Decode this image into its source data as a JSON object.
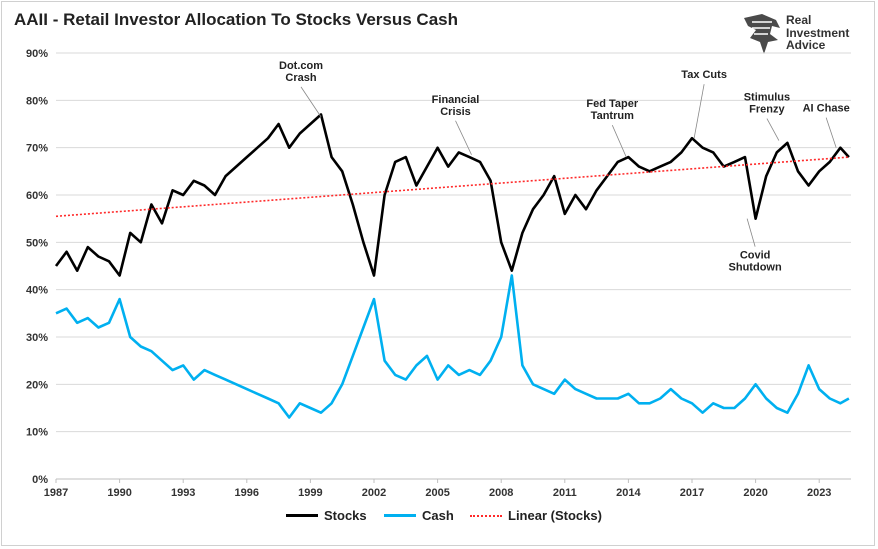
{
  "title": "AAII - Retail Investor Allocation To Stocks Versus Cash",
  "logo": {
    "line1": "Real",
    "line2": "Investment",
    "line3": "Advice"
  },
  "colors": {
    "stocks": "#000000",
    "cash": "#00b0f0",
    "trend": "#ff2a2a",
    "grid": "#d9d9d9"
  },
  "legend": {
    "stocks": "Stocks",
    "cash": "Cash",
    "trend": "Linear (Stocks)"
  },
  "chart_data": {
    "type": "line",
    "title": "AAII - Retail Investor Allocation To Stocks Versus Cash",
    "x_ticks": [
      "1987",
      "1990",
      "1993",
      "1996",
      "1999",
      "2002",
      "2005",
      "2008",
      "2011",
      "2014",
      "2017",
      "2020",
      "2023"
    ],
    "y_ticks": [
      "0%",
      "10%",
      "20%",
      "30%",
      "40%",
      "50%",
      "60%",
      "70%",
      "80%",
      "90%"
    ],
    "xlim": [
      1987.0,
      2024.5
    ],
    "ylim": [
      0,
      90
    ],
    "grid": "horizontal",
    "legend_position": "bottom",
    "series": [
      {
        "name": "Stocks",
        "x": [
          1987.0,
          1987.5,
          1988.0,
          1988.5,
          1989.0,
          1989.5,
          1990.0,
          1990.5,
          1991.0,
          1991.5,
          1992.0,
          1992.5,
          1993.0,
          1993.5,
          1994.0,
          1994.5,
          1995.0,
          1995.5,
          1996.0,
          1996.5,
          1997.0,
          1997.5,
          1998.0,
          1998.5,
          1999.0,
          1999.5,
          2000.0,
          2000.5,
          2001.0,
          2001.5,
          2002.0,
          2002.5,
          2003.0,
          2003.5,
          2004.0,
          2004.5,
          2005.0,
          2005.5,
          2006.0,
          2006.5,
          2007.0,
          2007.5,
          2008.0,
          2008.5,
          2009.0,
          2009.5,
          2010.0,
          2010.5,
          2011.0,
          2011.5,
          2012.0,
          2012.5,
          2013.0,
          2013.5,
          2014.0,
          2014.5,
          2015.0,
          2015.5,
          2016.0,
          2016.5,
          2017.0,
          2017.5,
          2018.0,
          2018.5,
          2019.0,
          2019.5,
          2020.0,
          2020.5,
          2021.0,
          2021.5,
          2022.0,
          2022.5,
          2023.0,
          2023.5,
          2024.0,
          2024.4
        ],
        "values": [
          45,
          48,
          44,
          49,
          47,
          46,
          43,
          52,
          50,
          58,
          54,
          61,
          60,
          63,
          62,
          60,
          64,
          66,
          68,
          70,
          72,
          75,
          70,
          73,
          75,
          77,
          68,
          65,
          58,
          50,
          43,
          60,
          67,
          68,
          62,
          66,
          70,
          66,
          69,
          68,
          67,
          63,
          50,
          44,
          52,
          57,
          60,
          64,
          56,
          60,
          57,
          61,
          64,
          67,
          68,
          66,
          65,
          66,
          67,
          69,
          72,
          70,
          69,
          66,
          67,
          68,
          55,
          64,
          69,
          71,
          65,
          62,
          65,
          67,
          70,
          68
        ],
        "color": "#000000"
      },
      {
        "name": "Cash",
        "x": [
          1987.0,
          1987.5,
          1988.0,
          1988.5,
          1989.0,
          1989.5,
          1990.0,
          1990.5,
          1991.0,
          1991.5,
          1992.0,
          1992.5,
          1993.0,
          1993.5,
          1994.0,
          1994.5,
          1995.0,
          1995.5,
          1996.0,
          1996.5,
          1997.0,
          1997.5,
          1998.0,
          1998.5,
          1999.0,
          1999.5,
          2000.0,
          2000.5,
          2001.0,
          2001.5,
          2002.0,
          2002.5,
          2003.0,
          2003.5,
          2004.0,
          2004.5,
          2005.0,
          2005.5,
          2006.0,
          2006.5,
          2007.0,
          2007.5,
          2008.0,
          2008.5,
          2009.0,
          2009.5,
          2010.0,
          2010.5,
          2011.0,
          2011.5,
          2012.0,
          2012.5,
          2013.0,
          2013.5,
          2014.0,
          2014.5,
          2015.0,
          2015.5,
          2016.0,
          2016.5,
          2017.0,
          2017.5,
          2018.0,
          2018.5,
          2019.0,
          2019.5,
          2020.0,
          2020.5,
          2021.0,
          2021.5,
          2022.0,
          2022.5,
          2023.0,
          2023.5,
          2024.0,
          2024.4
        ],
        "values": [
          35,
          36,
          33,
          34,
          32,
          33,
          38,
          30,
          28,
          27,
          25,
          23,
          24,
          21,
          23,
          22,
          21,
          20,
          19,
          18,
          17,
          16,
          13,
          16,
          15,
          14,
          16,
          20,
          26,
          32,
          38,
          25,
          22,
          21,
          24,
          26,
          21,
          24,
          22,
          23,
          22,
          25,
          30,
          43,
          24,
          20,
          19,
          18,
          21,
          19,
          18,
          17,
          17,
          17,
          18,
          16,
          16,
          17,
          19,
          17,
          16,
          14,
          16,
          15,
          15,
          17,
          20,
          17,
          15,
          14,
          18,
          24,
          19,
          17,
          16,
          17
        ],
        "color": "#00b0f0"
      },
      {
        "name": "Linear (Stocks)",
        "x": [
          1987.0,
          2024.4
        ],
        "values": [
          55.5,
          68.0
        ],
        "color": "#ff2a2a"
      }
    ],
    "annotations": [
      {
        "text": [
          "Dot.com",
          "Crash"
        ],
        "x": 1999.5,
        "y": 76.5
      },
      {
        "text": [
          "Financial",
          "Crisis"
        ],
        "x": 2006.6,
        "y": 68.5
      },
      {
        "text": [
          "Fed Taper",
          "Tantrum"
        ],
        "x": 2013.9,
        "y": 68.0
      },
      {
        "text": [
          "Tax Cuts"
        ],
        "x": 2017.1,
        "y": 72.0
      },
      {
        "text": [
          "Stimulus",
          "Frenzy"
        ],
        "x": 2021.1,
        "y": 71.5
      },
      {
        "text": [
          "AI Chase"
        ],
        "x": 2023.8,
        "y": 70.0
      },
      {
        "text": [
          "Covid",
          "Shutdown"
        ],
        "x": 2019.6,
        "y": 55.0
      }
    ]
  }
}
